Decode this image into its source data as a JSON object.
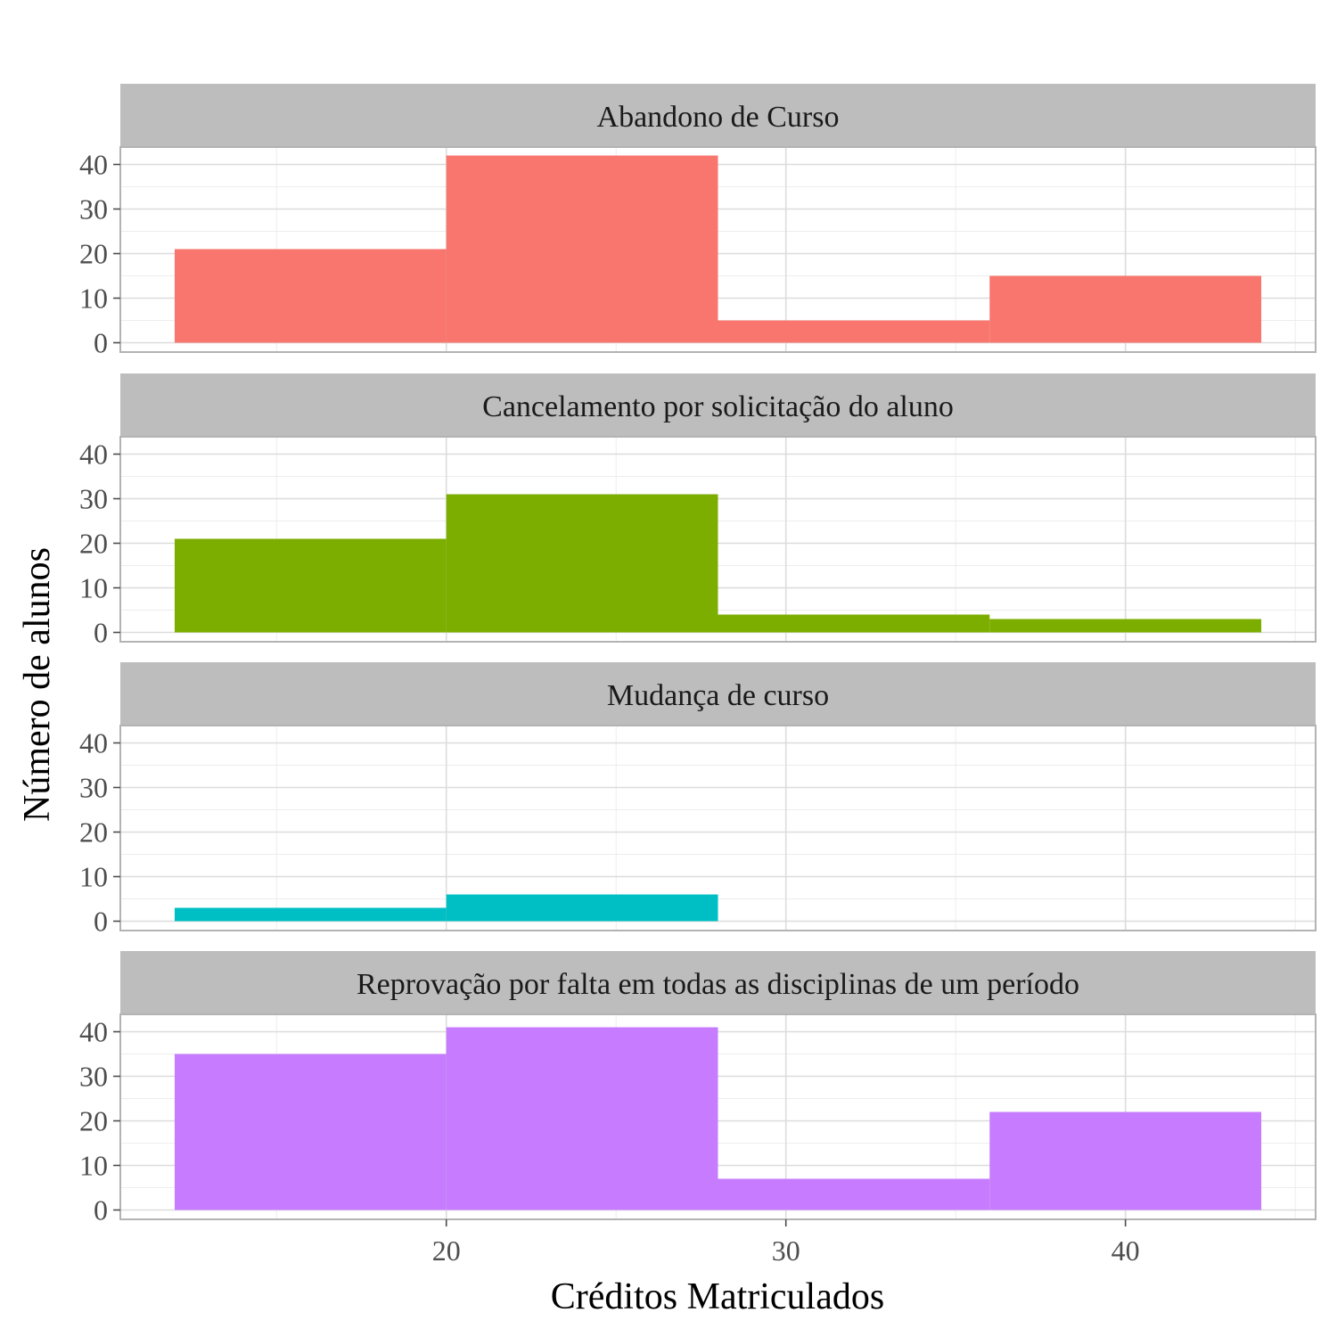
{
  "chart_data": {
    "type": "bar",
    "subtype": "histogram-facets",
    "xlabel": "Créditos Matriculados",
    "ylabel": "Número de alunos",
    "xlim": [
      10.4,
      45.6
    ],
    "ylim": [
      -2.1,
      43.9
    ],
    "x_ticks": [
      20,
      30,
      40
    ],
    "x_minor_ticks": [
      15,
      25,
      35,
      45
    ],
    "y_ticks": [
      0,
      10,
      20,
      30,
      40
    ],
    "y_minor_ticks": [
      5,
      15,
      25,
      35
    ],
    "bins": [
      [
        12,
        20
      ],
      [
        20,
        28
      ],
      [
        28,
        36
      ],
      [
        36,
        44
      ]
    ],
    "grid": true,
    "legend": "none",
    "panels": [
      {
        "title": "Abandono de Curso",
        "color": "#F8766D",
        "values": [
          21,
          42,
          5,
          15
        ]
      },
      {
        "title": "Cancelamento por solicitação do aluno",
        "color": "#7CAE00",
        "values": [
          21,
          31,
          4,
          3
        ]
      },
      {
        "title": "Mudança de curso",
        "color": "#00BFC4",
        "values": [
          3,
          6,
          0,
          0
        ]
      },
      {
        "title": "Reprovação por falta em todas as disciplinas de um período",
        "color": "#C77CFF",
        "values": [
          35,
          41,
          7,
          22
        ]
      }
    ]
  }
}
